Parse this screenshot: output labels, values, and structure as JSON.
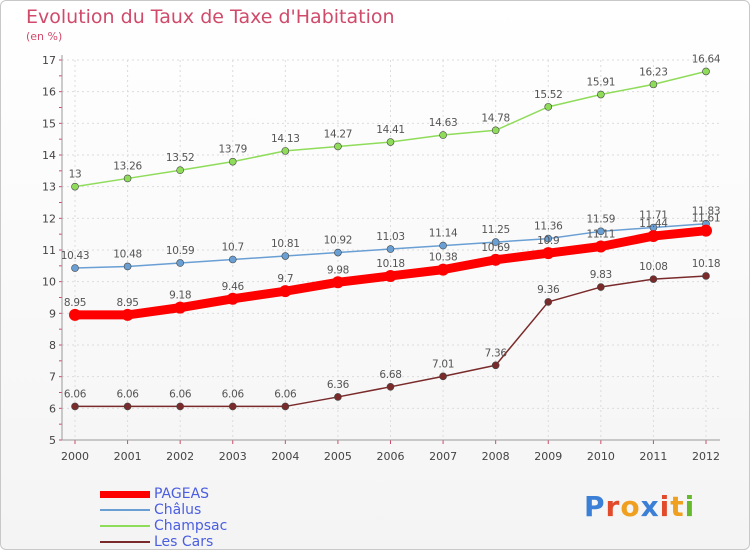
{
  "header": {
    "title": "Evolution du Taux de Taxe d'Habitation",
    "unit": "(en %)"
  },
  "brand": {
    "letters": [
      "P",
      "r",
      "o",
      "x",
      "i",
      "t",
      "i"
    ],
    "colors": [
      "#3b7fd6",
      "#e14a2b",
      "#f0a020",
      "#3b7fd6",
      "#e14a2b",
      "#f0a020",
      "#66b82c"
    ]
  },
  "chart_data": {
    "type": "line",
    "title": "Evolution du Taux de Taxe d'Habitation",
    "ylabel": "(en %)",
    "xlabel": "",
    "x": [
      "2000",
      "2001",
      "2002",
      "2003",
      "2004",
      "2005",
      "2006",
      "2007",
      "2008",
      "2009",
      "2010",
      "2011",
      "2012"
    ],
    "ylim": [
      5,
      17
    ],
    "yticks": [
      "5",
      "6",
      "7",
      "8",
      "9",
      "10",
      "11",
      "12",
      "13",
      "14",
      "15",
      "16",
      "17"
    ],
    "grid": true,
    "legend_position": "bottom-left",
    "series": [
      {
        "name": "PAGEAS",
        "color": "#ff0000",
        "values": [
          8.95,
          8.95,
          9.18,
          9.46,
          9.7,
          9.98,
          10.18,
          10.38,
          10.69,
          10.9,
          11.11,
          11.44,
          11.61
        ],
        "labels": [
          "8.95",
          "8.95",
          "9.18",
          "9.46",
          "9.7",
          "9.98",
          "10.18",
          "10.38",
          "10.69",
          "10.9",
          "11.11",
          "11.44",
          "11.61"
        ]
      },
      {
        "name": "Châlus",
        "color": "#6a9fd4",
        "values": [
          10.43,
          10.48,
          10.59,
          10.7,
          10.81,
          10.92,
          11.03,
          11.14,
          11.25,
          11.36,
          11.59,
          11.71,
          11.83
        ],
        "labels": [
          "10.43",
          "10.48",
          "10.59",
          "10.7",
          "10.81",
          "10.92",
          "11.03",
          "11.14",
          "11.25",
          "11.36",
          "11.59",
          "11.71",
          "11.83"
        ]
      },
      {
        "name": "Champsac",
        "color": "#8fdc5a",
        "values": [
          13,
          13.26,
          13.52,
          13.79,
          14.13,
          14.27,
          14.41,
          14.63,
          14.78,
          15.52,
          15.91,
          16.23,
          16.64
        ],
        "labels": [
          "13",
          "13.26",
          "13.52",
          "13.79",
          "14.13",
          "14.27",
          "14.41",
          "14.63",
          "14.78",
          "15.52",
          "15.91",
          "16.23",
          "16.64"
        ]
      },
      {
        "name": "Les Cars",
        "color": "#7a2a2a",
        "values": [
          6.06,
          6.06,
          6.06,
          6.06,
          6.06,
          6.36,
          6.68,
          7.01,
          7.36,
          9.36,
          9.83,
          10.08,
          10.18
        ],
        "labels": [
          "6.06",
          "6.06",
          "6.06",
          "6.06",
          "6.06",
          "6.36",
          "6.68",
          "7.01",
          "7.36",
          "9.36",
          "9.83",
          "10.08",
          "10.18"
        ]
      }
    ]
  }
}
